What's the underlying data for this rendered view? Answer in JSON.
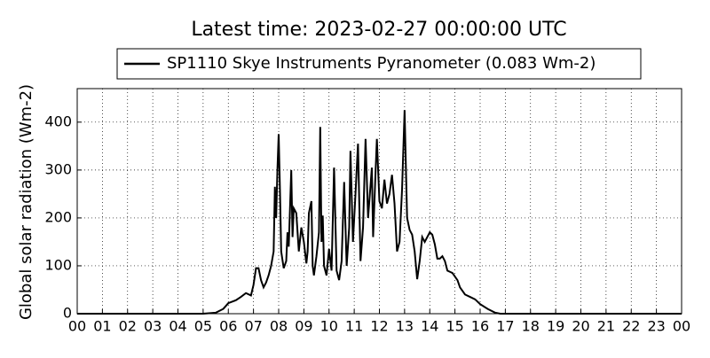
{
  "chart_data": {
    "type": "line",
    "title": "Latest time: 2023-02-27 00:00:00 UTC",
    "y_label": "Global solar radiation (Wm-2)",
    "legend_position": "top",
    "grid": true,
    "xlim": [
      0,
      24
    ],
    "ylim": [
      0,
      470
    ],
    "yticks": [
      0,
      100,
      200,
      300,
      400
    ],
    "xticks": [
      {
        "value": 0,
        "label": "00"
      },
      {
        "value": 1,
        "label": "01"
      },
      {
        "value": 2,
        "label": "02"
      },
      {
        "value": 3,
        "label": "03"
      },
      {
        "value": 4,
        "label": "04"
      },
      {
        "value": 5,
        "label": "05"
      },
      {
        "value": 6,
        "label": "06"
      },
      {
        "value": 7,
        "label": "07"
      },
      {
        "value": 8,
        "label": "08"
      },
      {
        "value": 9,
        "label": "09"
      },
      {
        "value": 10,
        "label": "10"
      },
      {
        "value": 11,
        "label": "11"
      },
      {
        "value": 12,
        "label": "12"
      },
      {
        "value": 13,
        "label": "13"
      },
      {
        "value": 14,
        "label": "14"
      },
      {
        "value": 15,
        "label": "15"
      },
      {
        "value": 16,
        "label": "16"
      },
      {
        "value": 17,
        "label": "17"
      },
      {
        "value": 18,
        "label": "18"
      },
      {
        "value": 19,
        "label": "19"
      },
      {
        "value": 20,
        "label": "20"
      },
      {
        "value": 21,
        "label": "21"
      },
      {
        "value": 22,
        "label": "22"
      },
      {
        "value": 23,
        "label": "23"
      },
      {
        "value": 24,
        "label": "00"
      }
    ],
    "x": [
      0,
      5,
      5.5,
      5.8,
      6.0,
      6.3,
      6.5,
      6.7,
      6.9,
      7.0,
      7.1,
      7.2,
      7.3,
      7.4,
      7.5,
      7.6,
      7.7,
      7.8,
      7.85,
      7.9,
      7.95,
      8.0,
      8.05,
      8.1,
      8.2,
      8.3,
      8.35,
      8.4,
      8.5,
      8.55,
      8.6,
      8.7,
      8.8,
      8.9,
      9.0,
      9.1,
      9.15,
      9.2,
      9.3,
      9.35,
      9.4,
      9.5,
      9.6,
      9.65,
      9.7,
      9.75,
      9.8,
      9.9,
      10.0,
      10.1,
      10.2,
      10.3,
      10.4,
      10.5,
      10.6,
      10.7,
      10.8,
      10.85,
      10.95,
      11.05,
      11.15,
      11.25,
      11.35,
      11.45,
      11.55,
      11.7,
      11.75,
      11.85,
      11.9,
      12.0,
      12.1,
      12.2,
      12.3,
      12.4,
      12.5,
      12.6,
      12.7,
      12.8,
      12.9,
      13.0,
      13.05,
      13.1,
      13.2,
      13.3,
      13.4,
      13.5,
      13.6,
      13.7,
      13.8,
      13.9,
      14.0,
      14.1,
      14.2,
      14.3,
      14.4,
      14.5,
      14.6,
      14.7,
      14.9,
      15.1,
      15.2,
      15.4,
      15.6,
      15.8,
      16.0,
      16.3,
      16.6,
      16.8,
      24
    ],
    "series": [
      {
        "name": "SP1110 Skye Instruments Pyranometer (0.083 Wm-2)",
        "color": "#000000",
        "values": [
          0,
          0,
          2,
          10,
          22,
          28,
          35,
          43,
          38,
          60,
          95,
          95,
          70,
          55,
          65,
          80,
          100,
          130,
          265,
          200,
          300,
          375,
          260,
          130,
          95,
          110,
          170,
          140,
          300,
          160,
          220,
          210,
          130,
          180,
          150,
          105,
          130,
          210,
          235,
          100,
          80,
          120,
          170,
          390,
          150,
          205,
          100,
          80,
          135,
          90,
          305,
          90,
          70,
          110,
          275,
          100,
          180,
          340,
          150,
          250,
          355,
          110,
          180,
          365,
          200,
          305,
          160,
          300,
          365,
          235,
          220,
          280,
          230,
          250,
          290,
          230,
          130,
          150,
          260,
          425,
          310,
          200,
          175,
          165,
          130,
          72,
          110,
          160,
          150,
          160,
          170,
          165,
          145,
          115,
          115,
          120,
          110,
          90,
          85,
          70,
          55,
          40,
          35,
          30,
          20,
          10,
          2,
          0,
          0
        ]
      }
    ]
  }
}
